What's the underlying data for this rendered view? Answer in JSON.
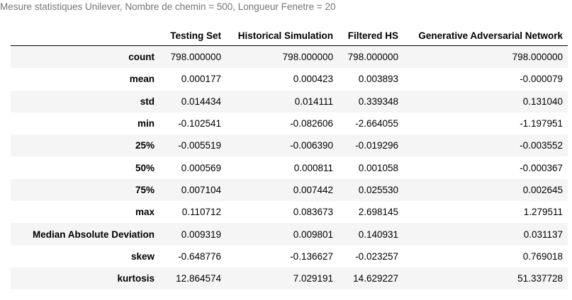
{
  "caption": "Mesure statistiques Unilever, Nombre de chemin = 500, Longueur Fenetre = 20",
  "table": {
    "index_header": "",
    "columns": [
      "Testing Set",
      "Historical Simulation",
      "Filtered HS",
      "Generative Adversarial Network"
    ],
    "rows": [
      {
        "label": "count",
        "values": [
          "798.000000",
          "798.000000",
          "798.000000",
          "798.000000"
        ]
      },
      {
        "label": "mean",
        "values": [
          "0.000177",
          "0.000423",
          "0.003893",
          "-0.000079"
        ]
      },
      {
        "label": "std",
        "values": [
          "0.014434",
          "0.014111",
          "0.339348",
          "0.131040"
        ]
      },
      {
        "label": "min",
        "values": [
          "-0.102541",
          "-0.082606",
          "-2.664055",
          "-1.197951"
        ]
      },
      {
        "label": "25%",
        "values": [
          "-0.005519",
          "-0.006390",
          "-0.019296",
          "-0.003552"
        ]
      },
      {
        "label": "50%",
        "values": [
          "0.000569",
          "0.000811",
          "0.001058",
          "-0.000367"
        ]
      },
      {
        "label": "75%",
        "values": [
          "0.007104",
          "0.007442",
          "0.025530",
          "0.002645"
        ]
      },
      {
        "label": "max",
        "values": [
          "0.110712",
          "0.083673",
          "2.698145",
          "1.279511"
        ]
      },
      {
        "label": "Median Absolute Deviation",
        "values": [
          "0.009319",
          "0.009801",
          "0.140931",
          "0.031137"
        ]
      },
      {
        "label": "skew",
        "values": [
          "-0.648776",
          "-0.136627",
          "-0.023257",
          "0.769018"
        ]
      },
      {
        "label": "kurtosis",
        "values": [
          "12.864574",
          "7.029191",
          "14.629227",
          "51.337728"
        ]
      }
    ]
  }
}
